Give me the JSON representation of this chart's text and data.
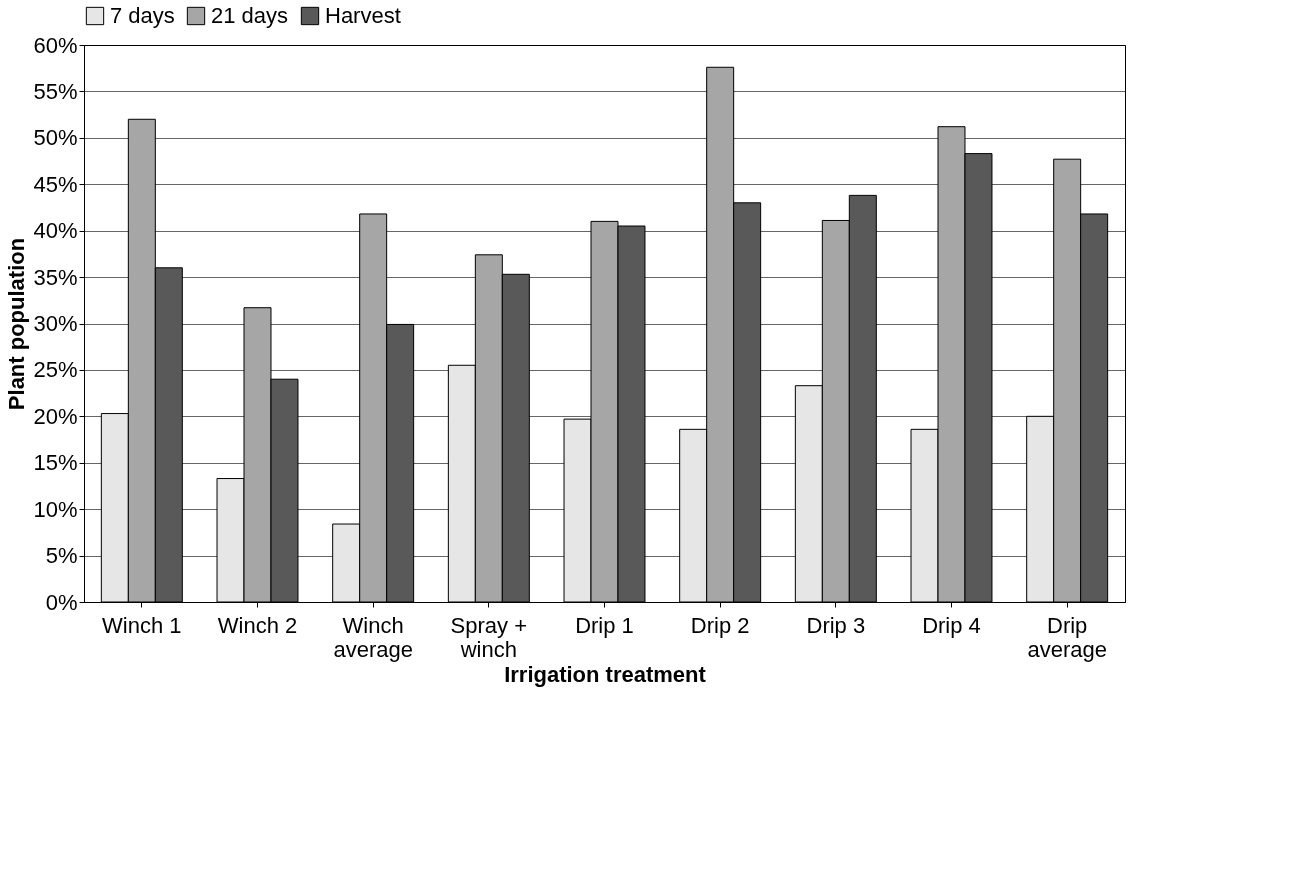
{
  "chart_data": {
    "type": "bar",
    "xlabel": "Irrigation treatment",
    "ylabel": "Plant population",
    "categories": [
      "Winch 1",
      "Winch 2",
      "Winch\naverage",
      "Spray +\nwinch",
      "Drip 1",
      "Drip 2",
      "Drip 3",
      "Drip 4",
      "Drip\naverage"
    ],
    "series": [
      {
        "name": "7 days",
        "color": "#e6e6e6",
        "values": [
          20.3,
          13.3,
          8.4,
          25.5,
          19.7,
          18.6,
          23.3,
          18.6,
          20.0
        ]
      },
      {
        "name": "21 days",
        "color": "#a6a6a6",
        "values": [
          52.0,
          31.7,
          41.8,
          37.4,
          41.0,
          57.6,
          41.1,
          51.2,
          47.7
        ]
      },
      {
        "name": "Harvest",
        "color": "#595959",
        "values": [
          36.0,
          24.0,
          29.9,
          35.3,
          40.5,
          43.0,
          43.8,
          48.3,
          41.8
        ]
      }
    ],
    "ylim": [
      0,
      60
    ],
    "yticks": [
      {
        "value": 0,
        "label": "0%"
      },
      {
        "value": 5,
        "label": "5%"
      },
      {
        "value": 10,
        "label": "10%"
      },
      {
        "value": 15,
        "label": "15%"
      },
      {
        "value": 20,
        "label": "20%"
      },
      {
        "value": 25,
        "label": "25%"
      },
      {
        "value": 30,
        "label": "30%"
      },
      {
        "value": 35,
        "label": "35%"
      },
      {
        "value": 40,
        "label": "40%"
      },
      {
        "value": 45,
        "label": "45%"
      },
      {
        "value": 50,
        "label": "50%"
      },
      {
        "value": 55,
        "label": "55%"
      },
      {
        "value": 60,
        "label": "60%"
      }
    ],
    "grid": "y",
    "legend": "top"
  }
}
